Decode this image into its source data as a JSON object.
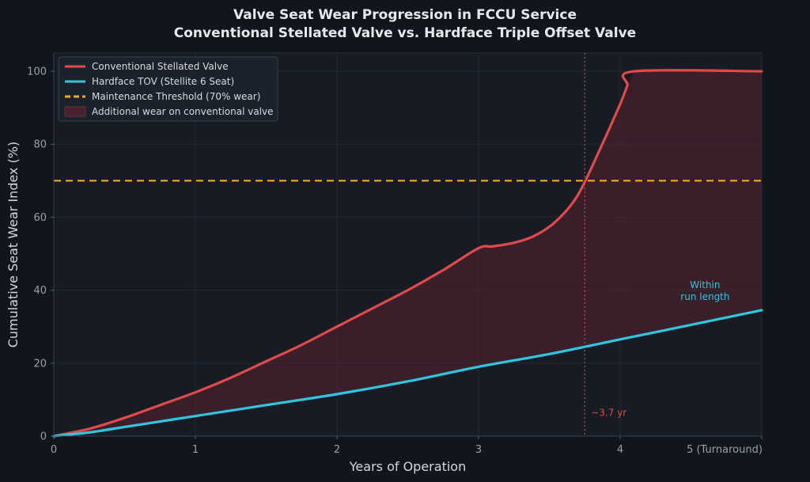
{
  "chart_data": {
    "type": "line",
    "title": "Valve Seat Wear Progression in FCCU Service",
    "subtitle": "Conventional Stellated Valve vs. Hardface Triple Offset Valve",
    "xlabel": "Years of Operation",
    "ylabel": "Cumulative Seat Wear Index (%)",
    "xlim": [
      0,
      5
    ],
    "ylim": [
      0,
      105
    ],
    "x_ticks": [
      {
        "value": 0,
        "label": "0"
      },
      {
        "value": 1,
        "label": "1"
      },
      {
        "value": 2,
        "label": "2"
      },
      {
        "value": 3,
        "label": "3"
      },
      {
        "value": 4,
        "label": "4"
      },
      {
        "value": 5,
        "label": "5 (Turnaround)"
      }
    ],
    "y_ticks": [
      {
        "value": 0,
        "label": "0"
      },
      {
        "value": 20,
        "label": "20"
      },
      {
        "value": 40,
        "label": "40"
      },
      {
        "value": 60,
        "label": "60"
      },
      {
        "value": 80,
        "label": "80"
      },
      {
        "value": 100,
        "label": "100"
      }
    ],
    "grid": true,
    "legend_position": "top-left",
    "colors": {
      "conventional": "#e04a4a",
      "hardface": "#2fc6e0",
      "threshold": "#f5a623",
      "fill": "#5a2230",
      "marker": "#e04a4a"
    },
    "series": [
      {
        "name": "Conventional Stellated Valve",
        "key": "conventional",
        "x": [
          0,
          0.25,
          0.5,
          0.75,
          1.0,
          1.25,
          1.5,
          1.75,
          2.0,
          2.25,
          2.5,
          2.75,
          3.0,
          3.1,
          3.25,
          3.4,
          3.55,
          3.7,
          3.85,
          4.0,
          4.05,
          4.1,
          5.0
        ],
        "y": [
          0,
          2,
          5,
          8.5,
          12,
          16,
          20.5,
          25,
          30,
          35,
          40,
          45.5,
          51.5,
          52,
          53,
          55,
          59,
          66,
          78,
          91,
          96,
          100,
          100
        ]
      },
      {
        "name": "Hardface TOV (Stellite 6 Seat)",
        "key": "hardface",
        "x": [
          0,
          0.25,
          0.5,
          0.75,
          1.0,
          1.5,
          2.0,
          2.5,
          3.0,
          3.5,
          4.0,
          4.5,
          5.0
        ],
        "y": [
          0,
          1,
          2.5,
          4,
          5.5,
          8.5,
          11.5,
          15,
          19,
          22.5,
          26.5,
          30.5,
          34.5
        ]
      }
    ],
    "threshold": {
      "name": "Maintenance Threshold (70% wear)",
      "y": 70
    },
    "fill_between": {
      "name": "Additional wear on conventional valve"
    },
    "vline": {
      "x": 3.75,
      "label": "~3.7 yr"
    },
    "annotation": {
      "line1": "Within",
      "line2": "run length",
      "x": 4.6,
      "y": 39
    }
  }
}
